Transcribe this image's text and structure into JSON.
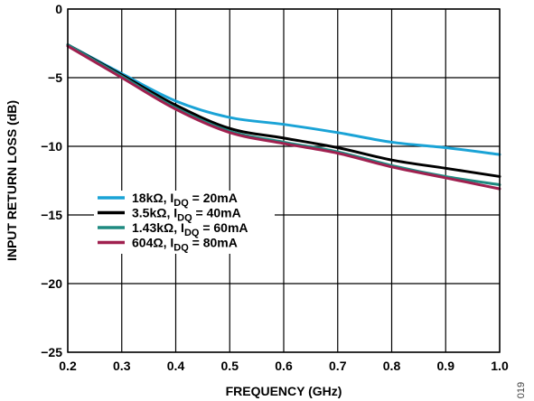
{
  "chart_data": {
    "type": "line",
    "xlabel": "FREQUENCY (GHz)",
    "ylabel": "INPUT RETURN LOSS (dB)",
    "xlim": [
      0.2,
      1.0
    ],
    "ylim": [
      -25,
      0
    ],
    "xticks": [
      0.2,
      0.3,
      0.4,
      0.5,
      0.6,
      0.7,
      0.8,
      0.9,
      1.0
    ],
    "xtick_labels": [
      "0.2",
      "0.3",
      "0.4",
      "0.5",
      "0.6",
      "0.7",
      "0.8",
      "0.9",
      "1.0"
    ],
    "yticks": [
      0,
      -5,
      -10,
      -15,
      -20,
      -25
    ],
    "ytick_labels": [
      "0",
      "−5",
      "−10",
      "−15",
      "−20",
      "−25"
    ],
    "grid": true,
    "legend_position": "middle-left",
    "figure_id": "019",
    "series": [
      {
        "name_main": "18kΩ, I",
        "name_sub": "DQ",
        "name_tail": " = 20mA",
        "color": "#1aa3d6",
        "x": [
          0.2,
          0.3,
          0.4,
          0.5,
          0.6,
          0.7,
          0.8,
          0.9,
          1.0
        ],
        "y": [
          -2.6,
          -4.7,
          -6.7,
          -7.9,
          -8.4,
          -9.0,
          -9.7,
          -10.1,
          -10.6
        ]
      },
      {
        "name_main": "3.5kΩ, I",
        "name_sub": "DQ",
        "name_tail": " = 40mA",
        "color": "#000000",
        "x": [
          0.2,
          0.3,
          0.4,
          0.5,
          0.6,
          0.7,
          0.8,
          0.9,
          1.0
        ],
        "y": [
          -2.6,
          -4.8,
          -7.0,
          -8.7,
          -9.4,
          -10.1,
          -11.0,
          -11.6,
          -12.2
        ]
      },
      {
        "name_main": "1.43kΩ, I",
        "name_sub": "DQ",
        "name_tail": " = 60mA",
        "color": "#1f8a80",
        "x": [
          0.2,
          0.3,
          0.4,
          0.5,
          0.6,
          0.7,
          0.8,
          0.9,
          1.0
        ],
        "y": [
          -2.6,
          -4.9,
          -7.2,
          -8.9,
          -9.7,
          -10.4,
          -11.4,
          -12.2,
          -12.8
        ]
      },
      {
        "name_main": "604Ω, I",
        "name_sub": "DQ",
        "name_tail": " = 80mA",
        "color": "#a0204f",
        "x": [
          0.2,
          0.3,
          0.4,
          0.5,
          0.6,
          0.7,
          0.8,
          0.9,
          1.0
        ],
        "y": [
          -2.7,
          -5.0,
          -7.3,
          -9.0,
          -9.8,
          -10.5,
          -11.5,
          -12.3,
          -13.1
        ]
      }
    ]
  }
}
